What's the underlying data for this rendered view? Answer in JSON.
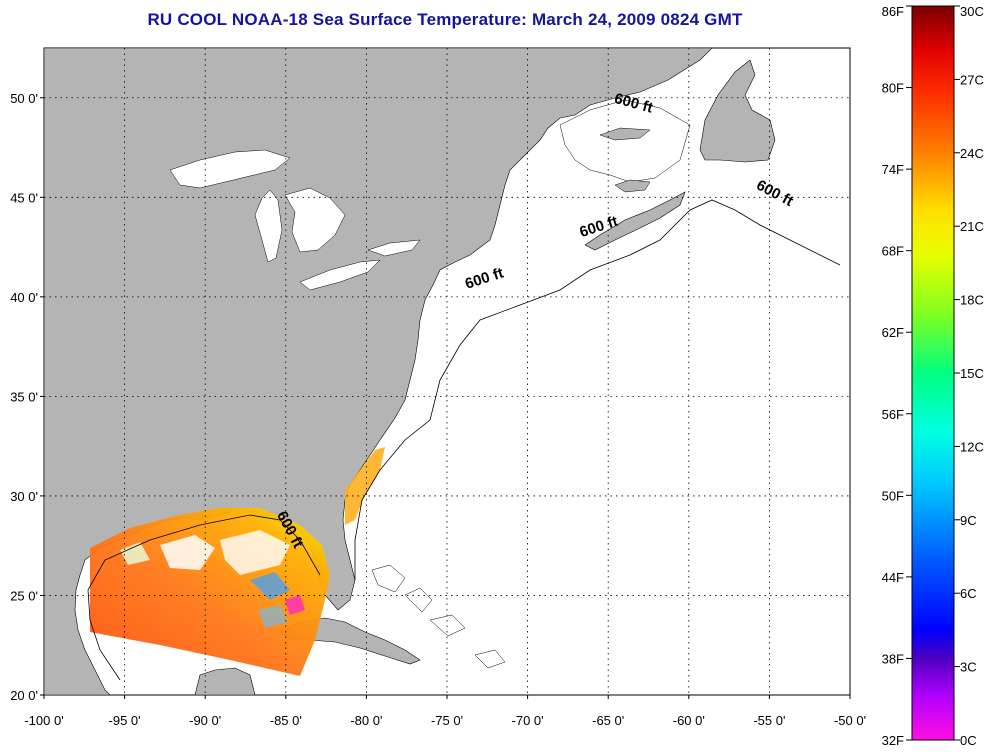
{
  "title": "RU COOL  NOAA-18  Sea Surface Temperature:  March 24, 2009 0824 GMT",
  "map": {
    "lon_range": [
      -100,
      -50
    ],
    "lat_range": [
      20,
      52.5
    ],
    "lon_ticks": [
      -100,
      -95,
      -90,
      -85,
      -80,
      -75,
      -70,
      -65,
      -60,
      -55,
      -50
    ],
    "lat_ticks": [
      20,
      25,
      30,
      35,
      40,
      45,
      50
    ],
    "lon_labels": [
      "-100 0'",
      "-95 0'",
      "-90 0'",
      "-85 0'",
      "-80 0'",
      "-75 0'",
      "-70 0'",
      "-65 0'",
      "-60 0'",
      "-55 0'",
      "-50 0'"
    ],
    "lat_labels": [
      "20 0'",
      "25 0'",
      "30 0'",
      "35 0'",
      "40 0'",
      "45 0'",
      "50 0'"
    ],
    "land_color": "#b4b4b4",
    "water_color": "#ffffff",
    "isobath_label": "600 ft",
    "isobath_labels": [
      {
        "text": "600 ft",
        "lon": -63.5,
        "lat": 49.5,
        "angle": 15
      },
      {
        "text": "600 ft",
        "lon": -54.8,
        "lat": 45.0,
        "angle": 28
      },
      {
        "text": "600 ft",
        "lon": -65.5,
        "lat": 43.3,
        "angle": -18
      },
      {
        "text": "600 ft",
        "lon": -72.6,
        "lat": 40.7,
        "angle": -18
      },
      {
        "text": "600 ft",
        "lon": -85.0,
        "lat": 28.2,
        "angle": 62
      }
    ]
  },
  "colorbar": {
    "f_labels": [
      "86F",
      "80F",
      "74F",
      "68F",
      "62F",
      "56F",
      "50F",
      "44F",
      "38F",
      "32F"
    ],
    "c_labels": [
      "30C",
      "27C",
      "24C",
      "21C",
      "18C",
      "15C",
      "12C",
      "9C",
      "6C",
      "3C",
      "0C"
    ],
    "f_range": [
      32,
      86
    ],
    "c_range": [
      0,
      30
    ],
    "colors": [
      "#ff00ff",
      "#8000ff",
      "#0000ff",
      "#0080ff",
      "#00e0ff",
      "#00ffb0",
      "#40ff40",
      "#c0ff00",
      "#ffff00",
      "#ffc000",
      "#ff8000",
      "#ff2000",
      "#c00000",
      "#800000"
    ]
  }
}
